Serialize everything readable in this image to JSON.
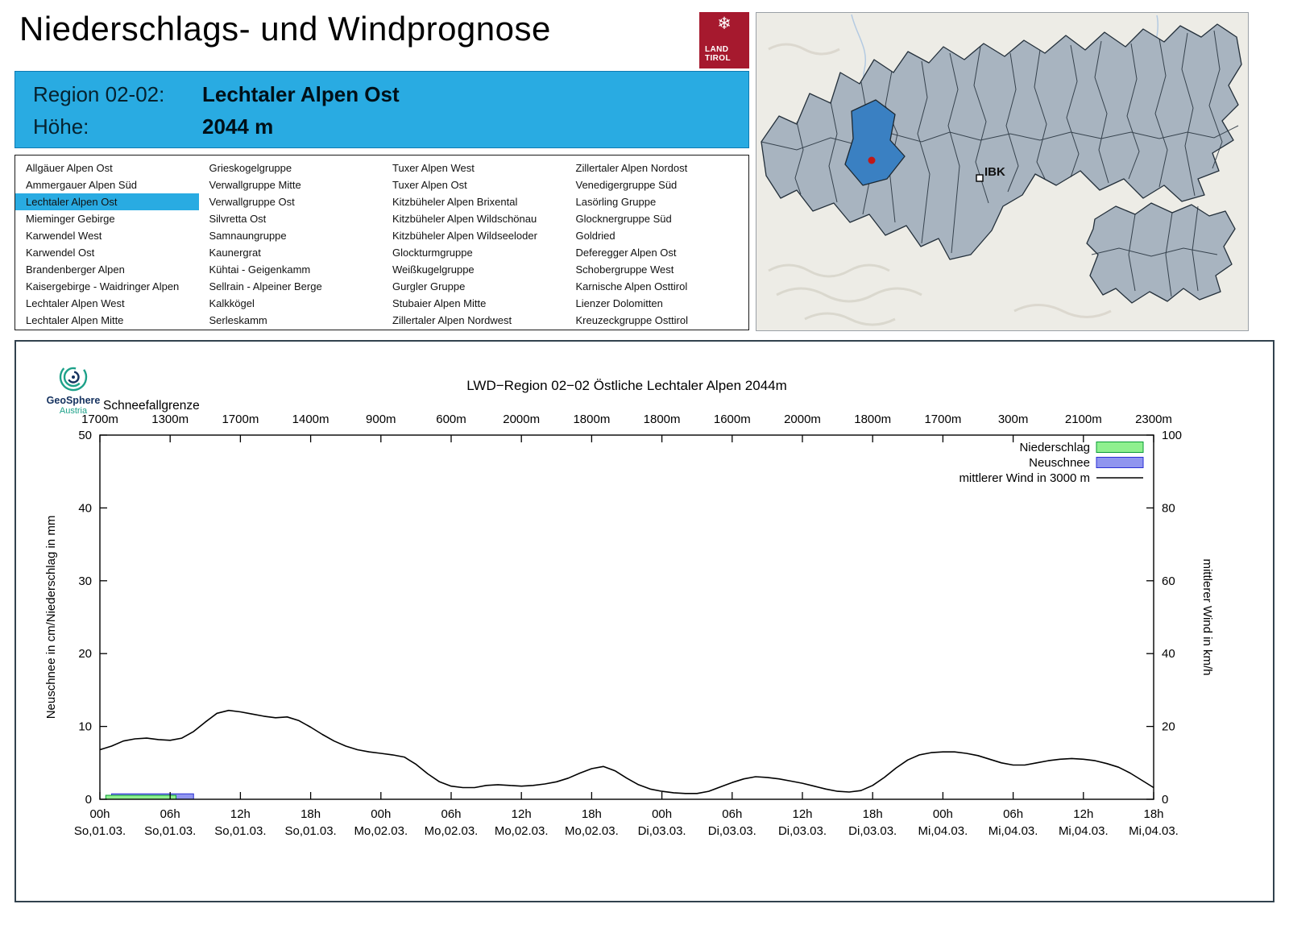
{
  "header": {
    "title": "Niederschlags- und Windprognose"
  },
  "logo": {
    "snowflake": "❄",
    "land": "LAND",
    "tirol": "TIROL"
  },
  "map": {
    "ibk_label": "IBK"
  },
  "info_box": {
    "region_label": "Region 02-02:",
    "region_value": "Lechtaler Alpen Ost",
    "hoehe_label": "Höhe:",
    "hoehe_value": "2044 m"
  },
  "region_list": {
    "selected": "Lechtaler Alpen Ost",
    "columns": [
      [
        "Allgäuer Alpen Ost",
        "Ammergauer Alpen Süd",
        "Lechtaler Alpen Ost",
        "Mieminger Gebirge",
        "Karwendel West",
        "Karwendel Ost",
        "Brandenberger Alpen",
        "Kaisergebirge - Waidringer Alpen",
        "Lechtaler Alpen West",
        "Lechtaler Alpen Mitte"
      ],
      [
        "Grieskogelgruppe",
        "Verwallgruppe Mitte",
        "Verwallgruppe Ost",
        "Silvretta Ost",
        "Samnaungruppe",
        "Kaunergrat",
        "Kühtai - Geigenkamm",
        "Sellrain - Alpeiner Berge",
        "Kalkkögel",
        "Serleskamm"
      ],
      [
        "Tuxer Alpen West",
        "Tuxer Alpen Ost",
        "Kitzbüheler Alpen Brixental",
        "Kitzbüheler Alpen Wildschönau",
        "Kitzbüheler Alpen Wildseeloder",
        "Glockturmgruppe",
        "Weißkugelgruppe",
        "Gurgler Gruppe",
        "Stubaier Alpen Mitte",
        "Zillertaler Alpen Nordwest"
      ],
      [
        "Zillertaler Alpen Nordost",
        "Venedigergruppe Süd",
        "Lasörling Gruppe",
        "Glocknergruppe Süd",
        "Goldried",
        "Deferegger Alpen Ost",
        "Schobergruppe West",
        "Karnische Alpen Osttirol",
        "Lienzer Dolomitten",
        "Kreuzeckgruppe Osttirol"
      ]
    ]
  },
  "chart": {
    "brand": {
      "line1": "GeoSphere",
      "line2": "Austria"
    }
  },
  "chart_data": {
    "type": "line",
    "title": "LWD−Region 02−02 Östliche Lechtaler Alpen 2044m",
    "schneefallgrenze_label": "Schneefallgrenze",
    "schneefallgrenze": [
      "1700m",
      "1300m",
      "1700m",
      "1400m",
      "900m",
      "600m",
      "2000m",
      "1800m",
      "1800m",
      "1600m",
      "2000m",
      "1800m",
      "1700m",
      "300m",
      "2100m",
      "2300m"
    ],
    "ylabel_left": "Neuschnee in cm/Niederschlag in mm",
    "ylabel_right": "mittlerer Wind in km/h",
    "ylim_left": [
      0,
      50
    ],
    "ylim_right": [
      0,
      100
    ],
    "yticks_left": [
      0,
      10,
      20,
      30,
      40,
      50
    ],
    "yticks_right": [
      0,
      20,
      40,
      60,
      80,
      100
    ],
    "x_hours_total": 90,
    "x_ticks": {
      "times": [
        "00h",
        "06h",
        "12h",
        "18h",
        "00h",
        "06h",
        "12h",
        "18h",
        "00h",
        "06h",
        "12h",
        "18h",
        "00h",
        "06h",
        "12h",
        "18h"
      ],
      "dates": [
        "So,01.03.",
        "So,01.03.",
        "So,01.03.",
        "So,01.03.",
        "Mo,02.03.",
        "Mo,02.03.",
        "Mo,02.03.",
        "Mo,02.03.",
        "Di,03.03.",
        "Di,03.03.",
        "Di,03.03.",
        "Di,03.03.",
        "Mi,04.03.",
        "Mi,04.03.",
        "Mi,04.03.",
        "Mi,04.03."
      ]
    },
    "legend": [
      {
        "label": "Niederschlag",
        "type": "box",
        "key": "niederschlag"
      },
      {
        "label": "Neuschnee",
        "type": "box",
        "key": "neuschnee"
      },
      {
        "label": "mittlerer Wind in 3000 m",
        "type": "line",
        "key": "wind"
      }
    ],
    "colors": {
      "niederschlag_fill": "#8ff08f",
      "niederschlag_border": "#0a9c36",
      "neuschnee_fill": "#9095ef",
      "neuschnee_border": "#2b2fd4",
      "wind": "#000000"
    },
    "niederschlag_mm": [
      {
        "from": 0.5,
        "to": 6.5,
        "value": 0.55
      }
    ],
    "neuschnee_cm": [
      {
        "from": 1,
        "to": 8,
        "value": 0.75
      }
    ],
    "wind_kmh": {
      "start_hour": 0,
      "step": 1,
      "values": [
        13.6,
        14.6,
        16,
        16.6,
        16.8,
        16.4,
        16.2,
        16.8,
        18.6,
        21.2,
        23.6,
        24.4,
        24,
        23.4,
        22.8,
        22.4,
        22.6,
        21.6,
        19.8,
        17.8,
        16,
        14.6,
        13.6,
        13,
        12.6,
        12.2,
        11.6,
        9.6,
        7,
        4.8,
        3.6,
        3.2,
        3.2,
        3.8,
        4,
        3.8,
        3.6,
        3.8,
        4.2,
        4.8,
        5.8,
        7.2,
        8.4,
        9,
        7.8,
        5.8,
        4,
        2.8,
        2.2,
        1.8,
        1.6,
        1.6,
        2.2,
        3.4,
        4.6,
        5.6,
        6.2,
        6,
        5.6,
        5,
        4.4,
        3.6,
        2.8,
        2.2,
        2,
        2.4,
        3.8,
        6,
        8.6,
        10.8,
        12.2,
        12.8,
        13,
        13,
        12.6,
        12,
        11,
        10,
        9.4,
        9.4,
        10,
        10.6,
        11,
        11.2,
        11,
        10.6,
        9.8,
        8.8,
        7.2,
        5.2,
        3.2
      ]
    }
  }
}
